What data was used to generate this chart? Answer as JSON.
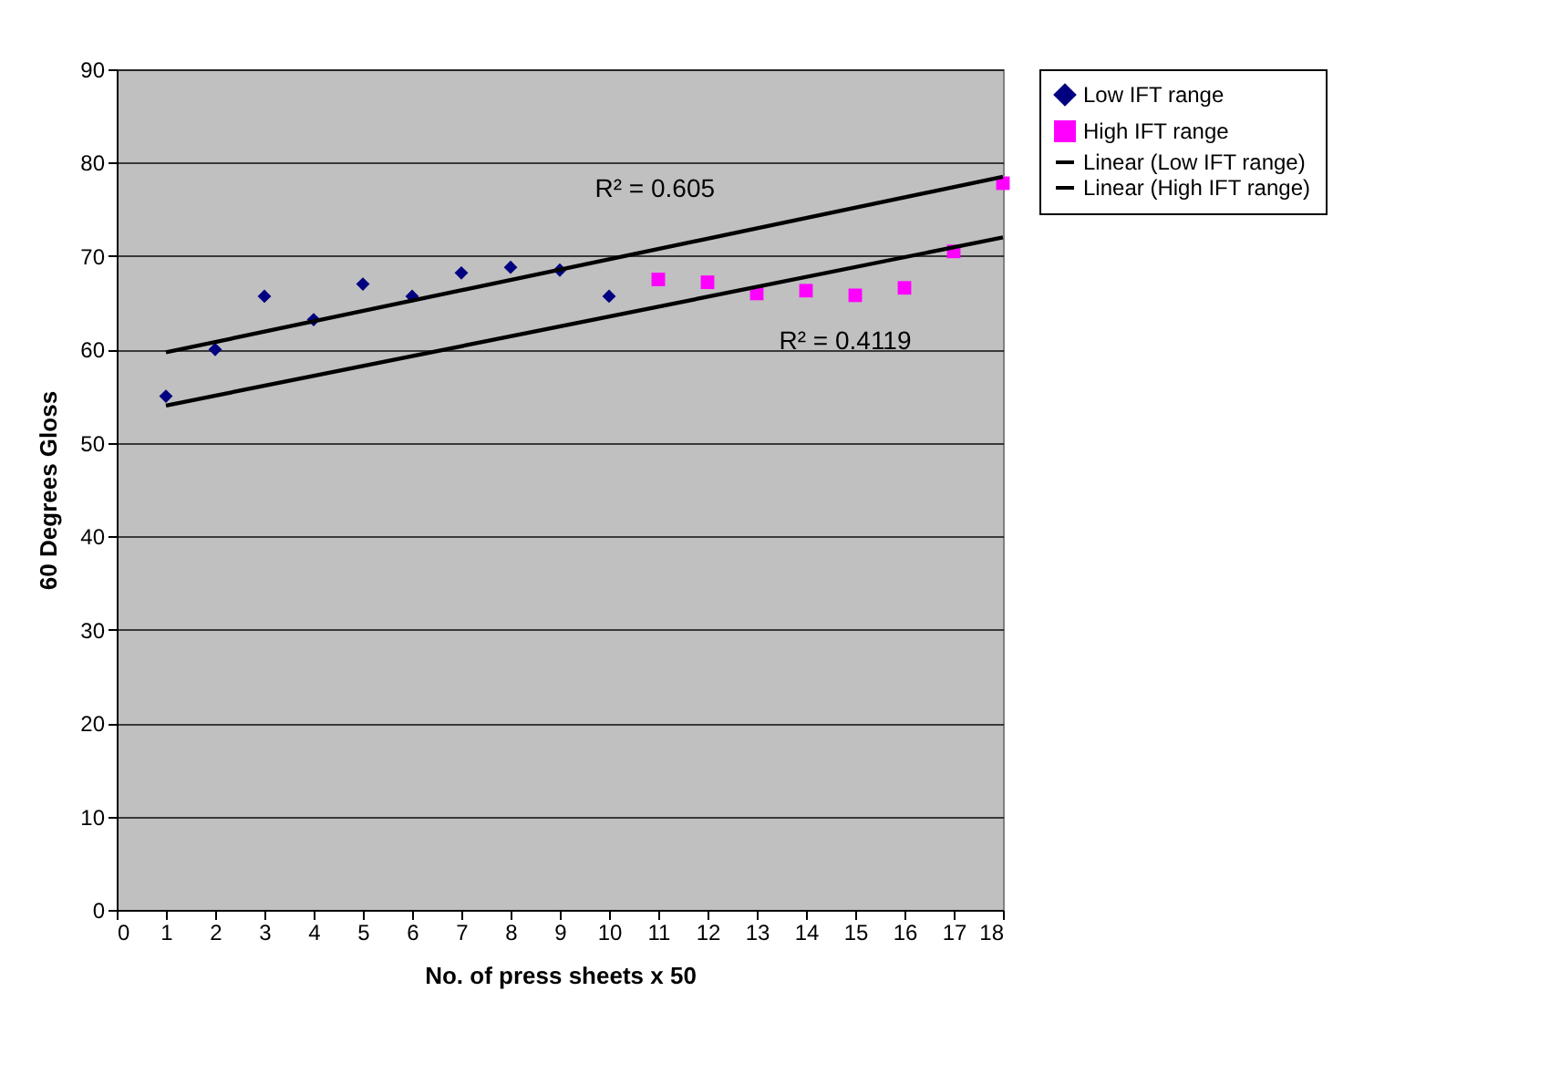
{
  "chart_data": {
    "type": "scatter",
    "xlabel": "No. of press sheets x 50",
    "ylabel": "60 Degrees Gloss",
    "xlim": [
      0,
      18
    ],
    "xticks": [
      0,
      1,
      2,
      3,
      4,
      5,
      6,
      7,
      8,
      9,
      10,
      11,
      12,
      13,
      14,
      15,
      16,
      17,
      18
    ],
    "ylim": [
      0,
      90
    ],
    "yticks": [
      0,
      10,
      20,
      30,
      40,
      50,
      60,
      70,
      80,
      90
    ],
    "grid": "y",
    "legend": "right",
    "series": [
      {
        "name": "Low IFT range",
        "type": "scatter",
        "marker": "diamond",
        "color": "#000080",
        "x": [
          1,
          2,
          3,
          4,
          5,
          6,
          7,
          8,
          9,
          10
        ],
        "values": [
          55,
          60,
          65.7,
          63.2,
          67,
          65.7,
          68.2,
          68.8,
          68.5,
          65.7
        ]
      },
      {
        "name": "High IFT range",
        "type": "scatter",
        "marker": "square",
        "color": "#ff00ff",
        "x": [
          11,
          12,
          13,
          14,
          15,
          16,
          17,
          18
        ],
        "values": [
          67.5,
          67.2,
          66,
          66.3,
          65.8,
          66.6,
          70.5,
          77.8
        ]
      },
      {
        "name": "Linear (Low IFT range)",
        "type": "line",
        "color": "#000000",
        "x": [
          1,
          18
        ],
        "values": [
          59.7,
          78.5
        ]
      },
      {
        "name": "Linear (High IFT range)",
        "type": "line",
        "color": "#000000",
        "x": [
          1,
          18
        ],
        "values": [
          54,
          72
        ]
      }
    ],
    "annotations": [
      "R² = 0.605",
      "R² = 0.4119"
    ]
  }
}
